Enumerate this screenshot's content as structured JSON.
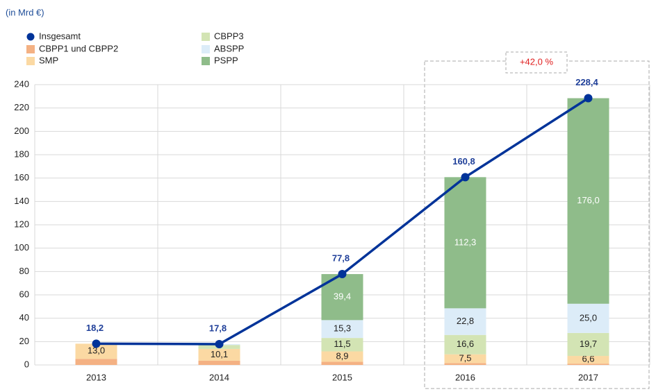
{
  "chart_data": {
    "type": "bar",
    "subtitle": "(in Mrd €)",
    "categories": [
      "2013",
      "2014",
      "2015",
      "2016",
      "2017"
    ],
    "series": [
      {
        "name": "CBPP1 und CBPP2",
        "color": "#f4b183",
        "values": [
          5.2,
          3.6,
          2.7,
          1.6,
          1.1
        ],
        "value_labels": [
          null,
          null,
          null,
          null,
          null
        ]
      },
      {
        "name": "SMP",
        "color": "#fbd9a3",
        "values": [
          13.0,
          10.1,
          8.9,
          7.5,
          6.6
        ],
        "value_labels": [
          "13,0",
          "10,1",
          "8,9",
          "7,5",
          "6,6"
        ]
      },
      {
        "name": "CBPP3",
        "color": "#d3e4b4",
        "values": [
          0,
          3.4,
          11.5,
          16.6,
          19.7
        ],
        "value_labels": [
          null,
          null,
          "11,5",
          "16,6",
          "19,7"
        ]
      },
      {
        "name": "ABSPP",
        "color": "#dcecf8",
        "values": [
          0,
          0.7,
          15.3,
          22.8,
          25.0
        ],
        "value_labels": [
          null,
          null,
          "15,3",
          "22,8",
          "25,0"
        ]
      },
      {
        "name": "PSPP",
        "color": "#8fbc8a",
        "values": [
          0,
          0,
          39.4,
          112.3,
          176.0
        ],
        "value_labels": [
          null,
          null,
          "39,4",
          "112,3",
          "176,0"
        ]
      }
    ],
    "line_series": {
      "name": "Insgesamt",
      "color": "#003399",
      "values": [
        18.2,
        17.8,
        77.8,
        160.8,
        228.4
      ],
      "value_labels": [
        "18,2",
        "17,8",
        "77,8",
        "160,8",
        "228,4"
      ]
    },
    "annotation": "+42,0 %",
    "ylim": [
      0,
      240
    ],
    "yticks": [
      0,
      20,
      40,
      60,
      80,
      100,
      120,
      140,
      160,
      180,
      200,
      220,
      240
    ],
    "grid": true
  }
}
